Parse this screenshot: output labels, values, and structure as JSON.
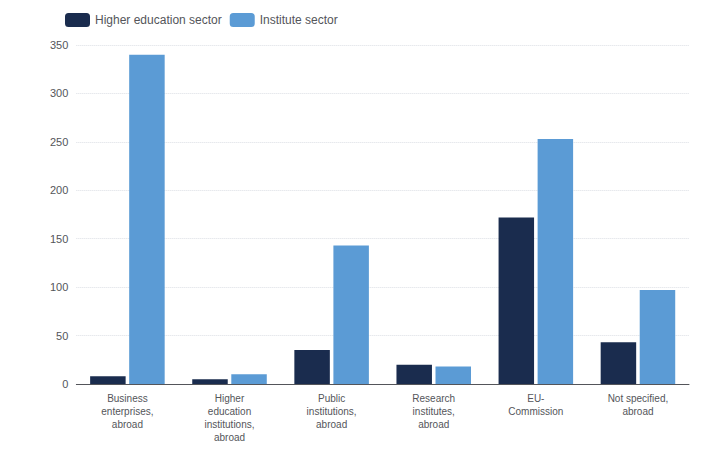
{
  "chart_data": {
    "type": "bar",
    "categories": [
      "Business\nenterprises,\nabroad",
      "Higher\neducation\ninstitutions,\nabroad",
      "Public\ninstitutions,\nabroad",
      "Research\ninstitutes,\nabroad",
      "EU-\nCommission",
      "Not specified,\nabroad"
    ],
    "series": [
      {
        "name": "Higher education sector",
        "color": "#1a2c4e",
        "values": [
          8,
          5,
          35,
          20,
          172,
          43
        ]
      },
      {
        "name": "Institute sector",
        "color": "#5b9bd5",
        "values": [
          340,
          10,
          143,
          18,
          253,
          97
        ]
      }
    ],
    "ylim": [
      0,
      350
    ],
    "yticks": [
      0,
      50,
      100,
      150,
      200,
      250,
      300,
      350
    ],
    "grid": true,
    "legend": "upper left"
  }
}
